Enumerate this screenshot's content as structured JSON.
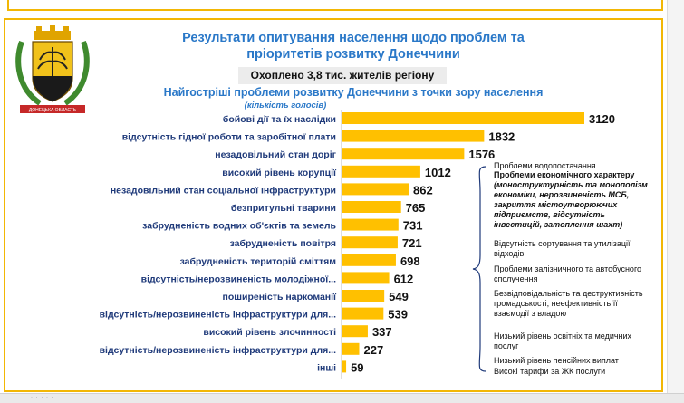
{
  "header": {
    "title_line1": "Результати опитування населення щодо проблем та",
    "title_line2": "пріоритетів розвитку Донеччини",
    "coverage": "Охоплено 3,8 тис. жителів регіону",
    "chart_title": "Найгостріші проблеми розвитку Донеччини з точки зору населення",
    "unit": "(кількість голосів)"
  },
  "emblem": {
    "name": "donetsk-oblast-coat-of-arms",
    "ribbon_text": "ДОНЕЦЬКА ОБЛАСТЬ"
  },
  "colors": {
    "bar": "#ffc000",
    "title": "#2a78c8",
    "border": "#f2b705",
    "label": "#1f3a7a"
  },
  "chart_data": {
    "type": "bar",
    "orientation": "horizontal",
    "title": "Найгостріші проблеми розвитку Донеччини з точки зору населення",
    "xlabel": "(кількість голосів)",
    "xlim": [
      0,
      3120
    ],
    "categories": [
      "бойові дії та їх наслідки",
      "відсутність гідної роботи та заробітної плати",
      "незадовільний стан доріг",
      "високий рівень корупції",
      "незадовільний стан соціальної інфраструктури",
      "безпритульні тварини",
      "забрудненість водних об'єктів та земель",
      "забрудненість повітря",
      "забрудненість територій сміттям",
      "відсутність/нерозвиненість молодіжної...",
      "поширеність наркоманії",
      "відсутність/нерозвиненість інфраструктури для...",
      "високий рівень злочинності",
      "відсутність/нерозвиненість інфраструктури для...",
      "інші"
    ],
    "values": [
      3120,
      1832,
      1576,
      1012,
      862,
      765,
      731,
      721,
      698,
      612,
      549,
      539,
      337,
      227,
      59
    ],
    "value_labels": [
      "3120",
      "1832",
      "1576",
      "1012",
      "862",
      "765",
      "731",
      "721",
      "698",
      "612",
      "549",
      "539",
      "337",
      "227",
      "59"
    ],
    "grid": false,
    "legend": "none"
  },
  "other_notes": [
    {
      "text": "Проблеми водопостачання"
    },
    {
      "title": "Проблеми економічного характеру",
      "detail": "(моноструктурність та монополізм економіки, нерозвиненість МСБ, закриття містоутворюючих підприємств, відсутність інвестицій, затоплення шахт)"
    },
    {
      "text": "Відсутність сортування та утилізації відходів"
    },
    {
      "text": "Проблеми залізничного та автобусного сполучення"
    },
    {
      "text": "Безвідповідальність та деструктивність громадськості, неефективність її взаємодії з владою"
    },
    {
      "text": "Низький рівень освітніх та медичних послуг"
    },
    {
      "text": "Низький рівень пенсійних виплат"
    },
    {
      "text": "Високі тарифи за ЖК послуги"
    }
  ]
}
